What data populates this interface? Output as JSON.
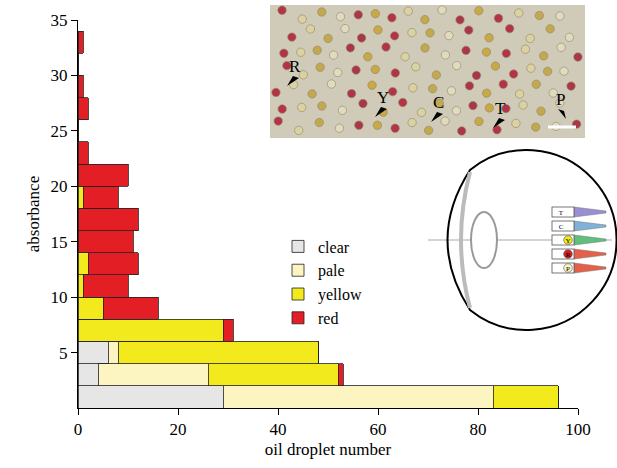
{
  "chart_data": {
    "type": "bar",
    "orientation": "horizontal",
    "stacked": true,
    "x_label": "oil droplet number",
    "y_label": "absorbance",
    "bins": [
      0,
      2,
      4,
      6,
      8,
      10,
      12,
      14,
      16,
      18,
      20,
      22,
      24,
      26,
      28,
      30,
      32,
      34
    ],
    "series": [
      {
        "name": "clear",
        "color": "#e6e6e6",
        "values": [
          29,
          4,
          6,
          0,
          0,
          0,
          0,
          0,
          0,
          0,
          0,
          0,
          0,
          0,
          0,
          0,
          0
        ]
      },
      {
        "name": "pale",
        "color": "#fcf5c2",
        "values": [
          54,
          22,
          2,
          0,
          0,
          0,
          0,
          0,
          0,
          0,
          0,
          0,
          0,
          0,
          0,
          0,
          0
        ]
      },
      {
        "name": "yellow",
        "color": "#f2ea1c",
        "values": [
          13,
          26,
          40,
          29,
          5,
          1,
          2,
          0,
          0,
          1,
          0,
          0,
          0,
          0,
          0,
          0,
          0
        ]
      },
      {
        "name": "red",
        "color": "#e31e24",
        "values": [
          0,
          1,
          0,
          2,
          11,
          9,
          10,
          11,
          12,
          7,
          10,
          2,
          0,
          2,
          1,
          0,
          1
        ]
      }
    ],
    "xlim": [
      0,
      100
    ],
    "xticks": [
      0,
      20,
      40,
      60,
      80,
      100
    ],
    "ylim": [
      0,
      35
    ],
    "yticks": [
      5,
      10,
      15,
      20,
      25,
      30,
      35
    ],
    "legend": "center",
    "grid": false
  },
  "inset_photo": {
    "labels": [
      "R",
      "Y",
      "C",
      "T",
      "P"
    ]
  },
  "eye_diagram": {
    "labels": [
      "T",
      "C",
      "Y",
      "R",
      "P"
    ]
  }
}
